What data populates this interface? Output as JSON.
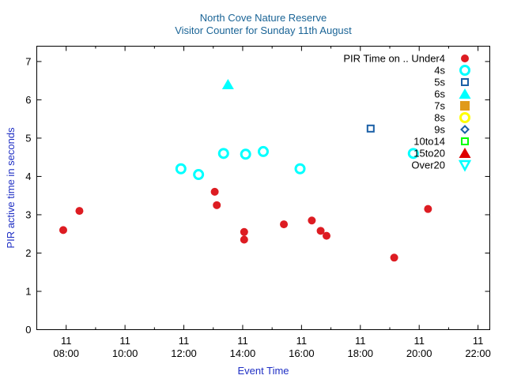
{
  "chart_data": {
    "type": "scatter",
    "title": [
      "North Cove Nature Reserve",
      "Visitor Counter for Sunday 11th August"
    ],
    "xlabel": "Event Time",
    "ylabel": "PIR active time in seconds",
    "x_unit": "hours",
    "xlim": [
      7.0,
      22.4
    ],
    "ylim": [
      0,
      7.4
    ],
    "x_ticks": [
      {
        "value": 8,
        "day": "11",
        "time": "08:00"
      },
      {
        "value": 10,
        "day": "11",
        "time": "10:00"
      },
      {
        "value": 12,
        "day": "11",
        "time": "12:00"
      },
      {
        "value": 14,
        "day": "11",
        "time": "14:00"
      },
      {
        "value": 16,
        "day": "11",
        "time": "16:00"
      },
      {
        "value": 18,
        "day": "11",
        "time": "18:00"
      },
      {
        "value": 20,
        "day": "11",
        "time": "20:00"
      },
      {
        "value": 22,
        "day": "11",
        "time": "22:00"
      }
    ],
    "y_ticks": [
      0,
      1,
      2,
      3,
      4,
      5,
      6,
      7
    ],
    "grid": false,
    "legend": {
      "position": "top-right",
      "heading": "PIR Time on .."
    },
    "series": [
      {
        "name": "Under4",
        "marker": "filled-circle",
        "color": "#dd1c22",
        "points": [
          [
            7.9,
            2.6
          ],
          [
            8.45,
            3.1
          ],
          [
            13.05,
            3.6
          ],
          [
            13.12,
            3.25
          ],
          [
            14.05,
            2.55
          ],
          [
            14.05,
            2.35
          ],
          [
            15.4,
            2.75
          ],
          [
            16.35,
            2.85
          ],
          [
            16.65,
            2.58
          ],
          [
            16.85,
            2.45
          ],
          [
            19.15,
            1.88
          ],
          [
            20.3,
            3.15
          ]
        ]
      },
      {
        "name": "4s",
        "marker": "open-circle",
        "color": "#00ffff",
        "points": [
          [
            11.9,
            4.2
          ],
          [
            12.5,
            4.05
          ],
          [
            13.35,
            4.6
          ],
          [
            14.1,
            4.58
          ],
          [
            14.7,
            4.65
          ],
          [
            15.95,
            4.2
          ],
          [
            19.8,
            4.6
          ]
        ]
      },
      {
        "name": "5s",
        "marker": "open-square",
        "color": "#1a5fa6",
        "points": [
          [
            18.35,
            5.25
          ]
        ]
      },
      {
        "name": "6s",
        "marker": "filled-triangle",
        "color": "#00ffff",
        "points": [
          [
            13.5,
            6.4
          ]
        ]
      },
      {
        "name": "7s",
        "marker": "filled-square",
        "color": "#e09a1c",
        "points": []
      },
      {
        "name": "8s",
        "marker": "open-circle",
        "color": "#ffff00",
        "points": []
      },
      {
        "name": "9s",
        "marker": "open-diamond",
        "color": "#1a5fa6",
        "points": []
      },
      {
        "name": "10to14",
        "marker": "open-square",
        "color": "#00ff00",
        "points": []
      },
      {
        "name": "15to20",
        "marker": "filled-triangle",
        "color": "#dd0000",
        "points": []
      },
      {
        "name": "Over20",
        "marker": "open-triangle-down",
        "color": "#00ffff",
        "points": []
      }
    ]
  }
}
